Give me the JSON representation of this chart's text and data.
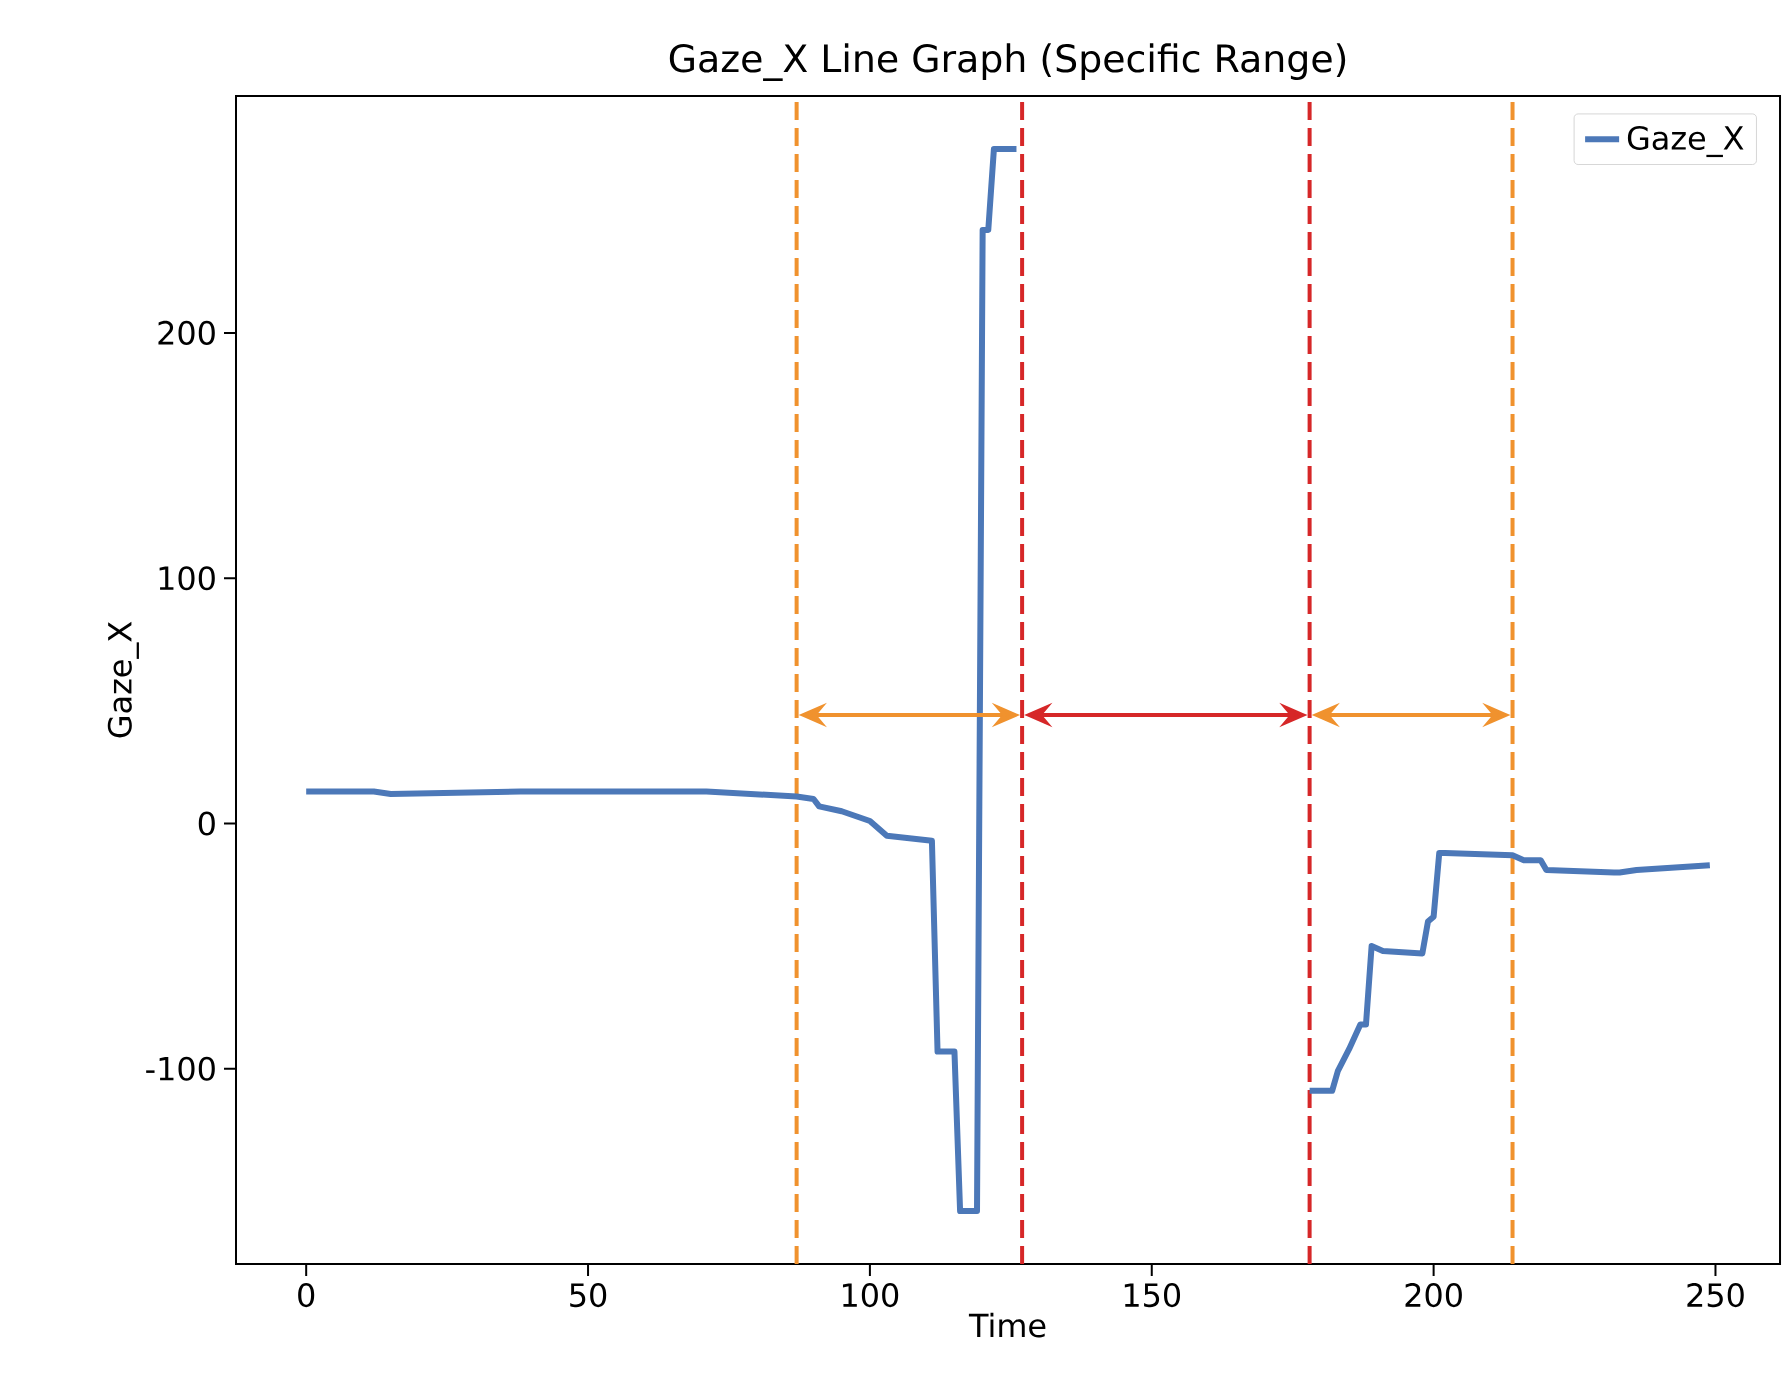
{
  "chart_data": {
    "type": "line",
    "title": "Gaze_X Line Graph (Specific Range)",
    "xlabel": "Time",
    "ylabel": "Gaze_X",
    "series": [
      {
        "name": "Gaze_X",
        "color": "#4c78b8",
        "x": [
          0,
          8,
          12,
          15,
          38,
          71,
          87,
          90,
          91,
          95,
          100,
          103,
          111,
          112,
          115,
          116,
          119,
          120,
          121,
          122,
          126,
          150,
          178,
          182,
          183,
          185,
          187,
          188,
          189,
          191,
          198,
          199,
          200,
          201,
          202,
          214,
          216,
          219,
          220,
          232,
          233,
          236,
          249
        ],
        "values": [
          13,
          13,
          13,
          12,
          13,
          13,
          11,
          10,
          7,
          5,
          1,
          -5,
          -7,
          -93,
          -93,
          -158,
          -158,
          242,
          242,
          275,
          275,
          null,
          -109,
          -109,
          -101,
          -92,
          -82,
          -82,
          -50,
          -52,
          -53,
          -40,
          -38,
          -12,
          -12,
          -13,
          -15,
          -15,
          -19,
          -20,
          -20,
          -19,
          -17
        ]
      }
    ],
    "xlim": [
      -12.45,
      261.45
    ],
    "ylim": [
      -179.6,
      296.6
    ],
    "xticks": [
      0,
      50,
      100,
      150,
      200,
      250
    ],
    "yticks": [
      -100,
      0,
      100,
      200
    ],
    "ref_lines": [
      {
        "axis": "x",
        "value": 87,
        "color": "#f0922e",
        "line_style": "dashed"
      },
      {
        "axis": "x",
        "value": 127,
        "color": "#d62728",
        "line_style": "dashed"
      },
      {
        "axis": "x",
        "value": 178,
        "color": "#d62728",
        "line_style": "dashed"
      },
      {
        "axis": "x",
        "value": 214,
        "color": "#f0922e",
        "line_style": "dashed"
      }
    ],
    "legend": "top right"
  }
}
